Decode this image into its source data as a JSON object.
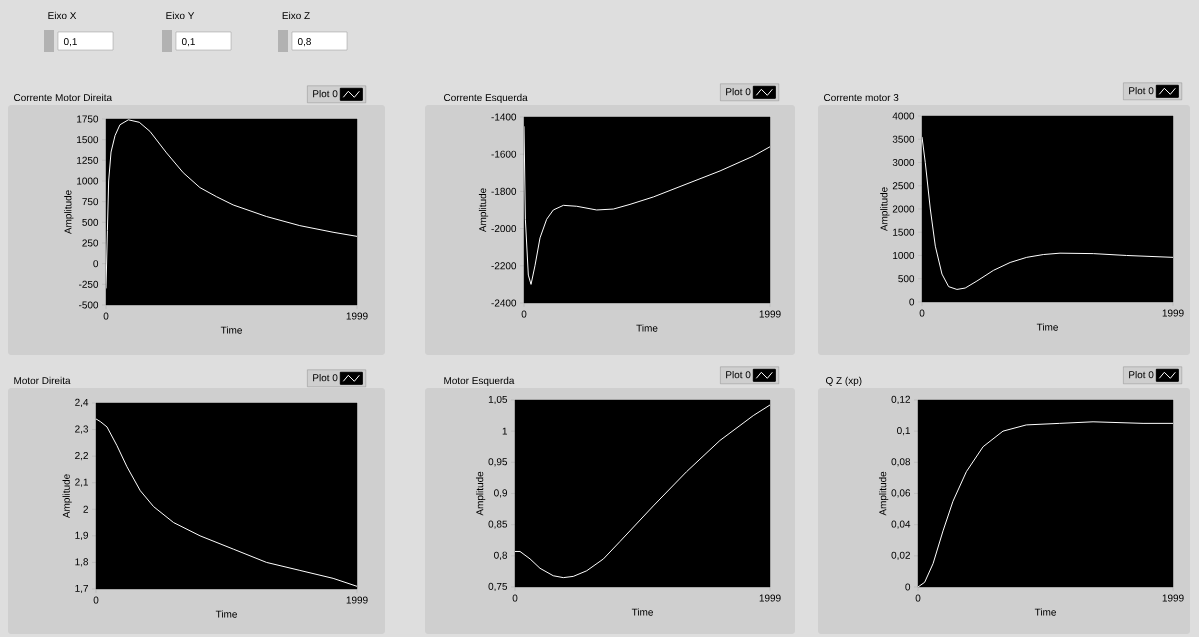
{
  "chart_data": [
    {
      "type": "other",
      "annotations": [
        "Eixo X",
        "0,1",
        "Eixo Y",
        "0,1",
        "Eixo Z",
        "0,8"
      ]
    },
    {
      "type": "line",
      "title": "Corrente Motor Direita",
      "xlabel": "Time",
      "ylabel": "Amplitude",
      "legend": "top right",
      "xlim": [
        0,
        1999
      ],
      "xticks": [
        0,
        1999
      ],
      "ylim": [
        -500,
        1750
      ],
      "yticks": [
        -500,
        -250,
        0,
        250,
        500,
        750,
        1000,
        1250,
        1500,
        1750
      ],
      "series": [
        {
          "name": "Plot 0",
          "color": "#ffffff",
          "x": [
            0,
            11,
            21,
            40,
            72,
            111,
            178,
            265,
            350,
            482,
            615,
            748,
            880,
            1013,
            1278,
            1543,
            1808,
            1999
          ],
          "values": [
            -300,
            400,
            1000,
            1350,
            1550,
            1680,
            1740,
            1710,
            1600,
            1340,
            1100,
            920,
            810,
            710,
            570,
            460,
            380,
            330
          ]
        }
      ]
    },
    {
      "type": "line",
      "title": "Corrente Esquerda",
      "xlabel": "Time",
      "ylabel": "Amplitude",
      "legend": "top right",
      "xlim": [
        0,
        1999
      ],
      "xticks": [
        0,
        1999
      ],
      "ylim": [
        -2400,
        -1400
      ],
      "yticks": [
        -2400,
        -2200,
        -2000,
        -1800,
        -1600,
        -1400
      ],
      "series": [
        {
          "name": "Plot 0",
          "color": "#ffffff",
          "x": [
            0,
            11,
            35,
            57,
            89,
            130,
            184,
            238,
            320,
            428,
            590,
            726,
            861,
            1051,
            1322,
            1593,
            1864,
            1999
          ],
          "values": [
            -1450,
            -1950,
            -2250,
            -2300,
            -2200,
            -2050,
            -1950,
            -1900,
            -1875,
            -1880,
            -1900,
            -1895,
            -1870,
            -1830,
            -1760,
            -1690,
            -1610,
            -1560
          ]
        }
      ]
    },
    {
      "type": "line",
      "title": "Corrente motor 3",
      "xlabel": "Time",
      "ylabel": "Amplitude",
      "legend": "top right",
      "xlim": [
        0,
        1999
      ],
      "xticks": [
        0,
        1999
      ],
      "ylim": [
        0,
        4000
      ],
      "yticks": [
        0,
        500,
        1000,
        1500,
        2000,
        2500,
        3000,
        3500,
        4000
      ],
      "series": [
        {
          "name": "Plot 0",
          "color": "#ffffff",
          "x": [
            0,
            26,
            66,
            106,
            159,
            212,
            278,
            344,
            437,
            569,
            702,
            834,
            966,
            1099,
            1364,
            1629,
            1999
          ],
          "values": [
            3550,
            3000,
            2000,
            1200,
            600,
            330,
            270,
            300,
            450,
            680,
            850,
            960,
            1020,
            1050,
            1040,
            1000,
            960
          ]
        }
      ]
    },
    {
      "type": "line",
      "title": "Motor Direita",
      "xlabel": "Time",
      "ylabel": "Amplitude",
      "legend": "top right",
      "xlim": [
        0,
        1999
      ],
      "xticks": [
        0,
        1999
      ],
      "ylim": [
        1.7,
        2.4
      ],
      "yticks": [
        {
          "value": 1.7,
          "label": "1,7"
        },
        {
          "value": 1.8,
          "label": "1,8"
        },
        {
          "value": 1.9,
          "label": "1,9"
        },
        {
          "value": 2,
          "label": "2"
        },
        {
          "value": 2.1,
          "label": "2,1"
        },
        {
          "value": 2.2,
          "label": "2,2"
        },
        {
          "value": 2.3,
          "label": "2,3"
        },
        {
          "value": 2.4,
          "label": "2,4"
        }
      ],
      "series": [
        {
          "name": "Plot 0",
          "color": "#ffffff",
          "x": [
            0,
            33,
            84,
            160,
            237,
            339,
            441,
            594,
            797,
            1052,
            1306,
            1561,
            1816,
            1999
          ],
          "values": [
            2.34,
            2.33,
            2.31,
            2.24,
            2.16,
            2.07,
            2.01,
            1.95,
            1.9,
            1.85,
            1.8,
            1.77,
            1.74,
            1.71
          ]
        }
      ]
    },
    {
      "type": "line",
      "title": "Motor Esquerda",
      "xlabel": "Time",
      "ylabel": "Amplitude",
      "legend": "top right",
      "xlim": [
        0,
        1999
      ],
      "xticks": [
        0,
        1999
      ],
      "ylim": [
        0.75,
        1.05
      ],
      "yticks": [
        {
          "value": 0.75,
          "label": "0,75"
        },
        {
          "value": 0.8,
          "label": "0,8"
        },
        {
          "value": 0.85,
          "label": "0,85"
        },
        {
          "value": 0.9,
          "label": "0,9"
        },
        {
          "value": 0.95,
          "label": "0,95"
        },
        {
          "value": 1,
          "label": "1"
        },
        {
          "value": 1.05,
          "label": "1,05"
        }
      ],
      "series": [
        {
          "name": "Plot 0",
          "color": "#ffffff",
          "x": [
            0,
            39,
            118,
            196,
            300,
            379,
            457,
            562,
            693,
            823,
            1084,
            1345,
            1606,
            1868,
            1999
          ],
          "values": [
            0.807,
            0.807,
            0.795,
            0.78,
            0.768,
            0.765,
            0.767,
            0.776,
            0.795,
            0.823,
            0.88,
            0.935,
            0.985,
            1.025,
            1.042
          ]
        }
      ]
    },
    {
      "type": "line",
      "title": "Q Z (xp)",
      "xlabel": "Time",
      "ylabel": "Amplitude",
      "legend": "top right",
      "xlim": [
        0,
        1999
      ],
      "xticks": [
        0,
        1999
      ],
      "ylim": [
        0,
        0.12
      ],
      "yticks": [
        0,
        {
          "value": 0.02,
          "label": "0,02"
        },
        {
          "value": 0.04,
          "label": "0,04"
        },
        {
          "value": 0.06,
          "label": "0,06"
        },
        {
          "value": 0.08,
          "label": "0,08"
        },
        {
          "value": 0.1,
          "label": "0,1"
        },
        {
          "value": 0.12,
          "label": "0,12"
        }
      ],
      "series": [
        {
          "name": "Plot 0",
          "color": "#ffffff",
          "x": [
            0,
            52,
            118,
            196,
            274,
            379,
            510,
            666,
            849,
            1110,
            1372,
            1764,
            1999
          ],
          "values": [
            0,
            0.003,
            0.015,
            0.036,
            0.055,
            0.074,
            0.09,
            0.1,
            0.104,
            0.105,
            0.106,
            0.105,
            0.105
          ]
        }
      ]
    }
  ]
}
